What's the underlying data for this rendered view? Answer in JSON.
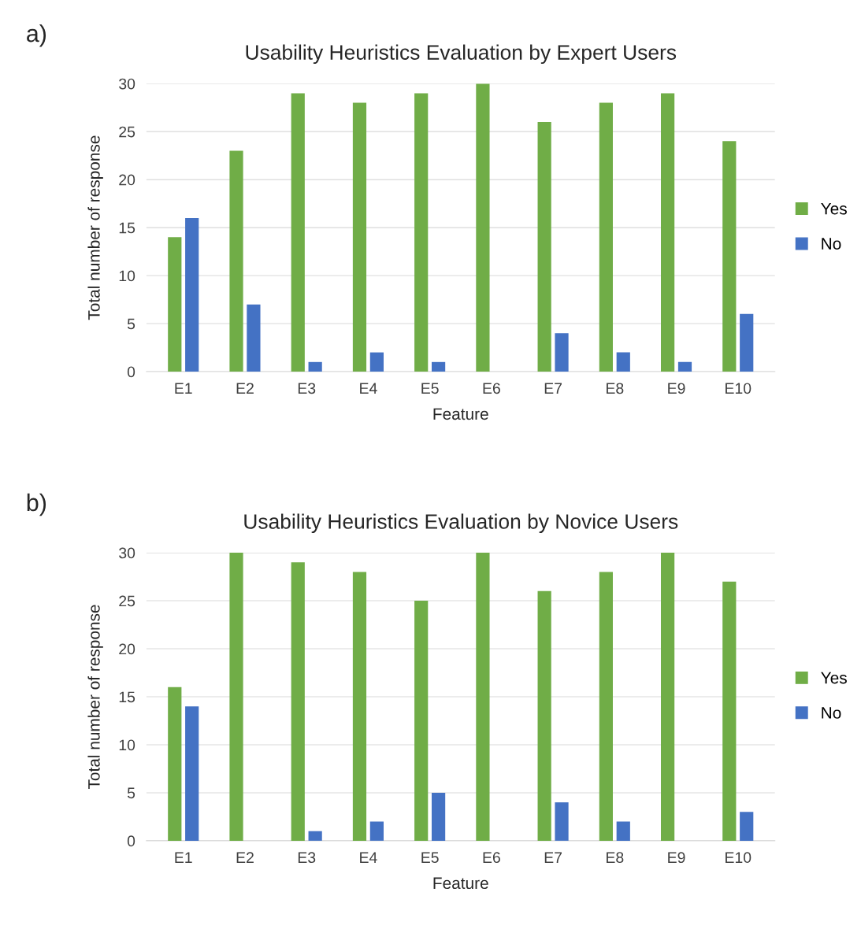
{
  "chart_data": [
    {
      "type": "bar",
      "title": "Usability Heuristics Evaluation by Expert Users",
      "xlabel": "Feature",
      "ylabel": "Total number of response",
      "annotations": [
        "a)"
      ],
      "categories": [
        "E1",
        "E2",
        "E3",
        "E4",
        "E5",
        "E6",
        "E7",
        "E8",
        "E9",
        "E10"
      ],
      "series": [
        {
          "name": "Yes",
          "color": "#70ad47",
          "values": [
            14,
            23,
            29,
            28,
            29,
            30,
            26,
            28,
            29,
            24
          ]
        },
        {
          "name": "No",
          "color": "#4472c4",
          "values": [
            16,
            7,
            1,
            2,
            1,
            0,
            4,
            2,
            1,
            6
          ]
        }
      ],
      "ylim": [
        0,
        30
      ],
      "yticks": [
        0,
        5,
        10,
        15,
        20,
        25,
        30
      ],
      "grid": "y",
      "legend": "right"
    },
    {
      "type": "bar",
      "title": "Usability Heuristics Evaluation by Novice Users",
      "xlabel": "Feature",
      "ylabel": "Total number of response",
      "annotations": [
        "b)"
      ],
      "categories": [
        "E1",
        "E2",
        "E3",
        "E4",
        "E5",
        "E6",
        "E7",
        "E8",
        "E9",
        "E10"
      ],
      "series": [
        {
          "name": "Yes",
          "color": "#70ad47",
          "values": [
            16,
            30,
            29,
            28,
            25,
            30,
            26,
            28,
            30,
            27
          ]
        },
        {
          "name": "No",
          "color": "#4472c4",
          "values": [
            14,
            0,
            1,
            2,
            5,
            0,
            4,
            2,
            0,
            3
          ]
        }
      ],
      "ylim": [
        0,
        30
      ],
      "yticks": [
        0,
        5,
        10,
        15,
        20,
        25,
        30
      ],
      "grid": "y",
      "legend": "right"
    }
  ]
}
